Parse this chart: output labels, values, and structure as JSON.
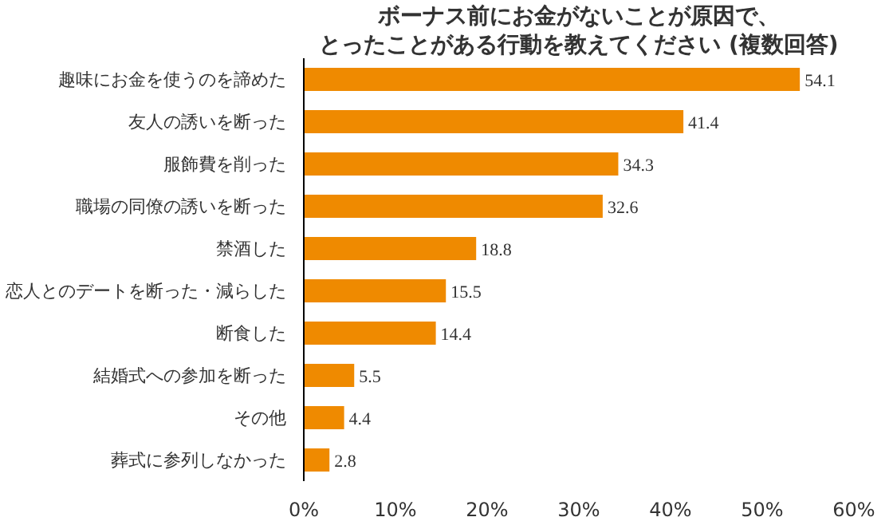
{
  "chart_data": {
    "type": "bar",
    "orientation": "horizontal",
    "title": "ボーナス前にお金がないことが原因で、",
    "subtitle": "とったことがある行動を教えてください (複数回答)",
    "categories": [
      "趣味にお金を使うのを諦めた",
      "友人の誘いを断った",
      "服飾費を削った",
      "職場の同僚の誘いを断った",
      "禁酒した",
      "恋人とのデートを断った・減らした",
      "断食した",
      "結婚式への参加を断った",
      "その他",
      "葬式に参列しなかった"
    ],
    "values": [
      54.1,
      41.4,
      34.3,
      32.6,
      18.8,
      15.5,
      14.4,
      5.5,
      4.4,
      2.8
    ],
    "color": "#ef8a00",
    "xlim": [
      0,
      60
    ],
    "xticks": [
      {
        "value": 0,
        "label": "0%"
      },
      {
        "value": 10,
        "label": "10%"
      },
      {
        "value": 20,
        "label": "20%"
      },
      {
        "value": 30,
        "label": "30%"
      },
      {
        "value": 40,
        "label": "40%"
      },
      {
        "value": 50,
        "label": "50%"
      },
      {
        "value": 60,
        "label": "60%"
      }
    ],
    "grid": false,
    "data_labels": true
  }
}
